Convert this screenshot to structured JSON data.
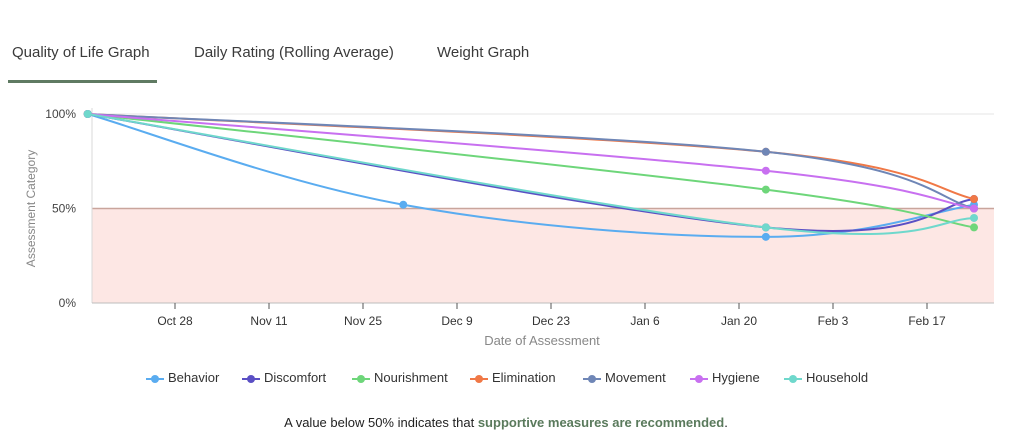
{
  "tabs": [
    {
      "label": "Quality of Life Graph",
      "active": true
    },
    {
      "label": "Daily Rating (Rolling Average)",
      "active": false
    },
    {
      "label": "Weight Graph",
      "active": false
    }
  ],
  "colors": {
    "threshold_band": "#fde7e4",
    "threshold_line": "#c9a59c",
    "accent": "#5f7a62"
  },
  "chart_data": {
    "type": "line",
    "xlabel": "Date of Assessment",
    "ylabel": "Assessment Category",
    "x_ticks": [
      "Oct 28",
      "Nov 11",
      "Nov 25",
      "Dec 9",
      "Dec 23",
      "Jan 6",
      "Jan 20",
      "Feb 3",
      "Feb 17"
    ],
    "y_ticks": [
      "100%",
      "50%",
      "0%"
    ],
    "ylim": [
      0,
      100
    ],
    "threshold": 50,
    "series": [
      {
        "name": "Behavior",
        "color": "#5aacf0",
        "points": [
          [
            "2023-10-15",
            100
          ],
          [
            "2023-12-01",
            52
          ],
          [
            "2024-01-24",
            35
          ],
          [
            "2024-02-24",
            52
          ]
        ]
      },
      {
        "name": "Discomfort",
        "color": "#5a4fc4",
        "points": [
          [
            "2023-10-15",
            100
          ],
          [
            "2024-01-24",
            40
          ],
          [
            "2024-02-24",
            55
          ]
        ]
      },
      {
        "name": "Nourishment",
        "color": "#6ed67a",
        "points": [
          [
            "2023-10-15",
            100
          ],
          [
            "2024-01-24",
            60
          ],
          [
            "2024-02-24",
            40
          ]
        ]
      },
      {
        "name": "Elimination",
        "color": "#f07846",
        "points": [
          [
            "2023-10-15",
            100
          ],
          [
            "2024-01-24",
            80
          ],
          [
            "2024-02-24",
            55
          ]
        ]
      },
      {
        "name": "Movement",
        "color": "#6f86b6",
        "points": [
          [
            "2023-10-15",
            100
          ],
          [
            "2024-01-24",
            80
          ],
          [
            "2024-02-24",
            50
          ]
        ]
      },
      {
        "name": "Hygiene",
        "color": "#c870f0",
        "points": [
          [
            "2023-10-15",
            100
          ],
          [
            "2024-01-24",
            70
          ],
          [
            "2024-02-24",
            50
          ]
        ]
      },
      {
        "name": "Household",
        "color": "#6fd8cc",
        "points": [
          [
            "2023-10-15",
            100
          ],
          [
            "2024-01-24",
            40
          ],
          [
            "2024-02-24",
            45
          ]
        ]
      }
    ]
  },
  "note": {
    "prefix": "A value below 50% indicates that ",
    "emphasis": "supportive measures are recommended",
    "suffix": "."
  }
}
